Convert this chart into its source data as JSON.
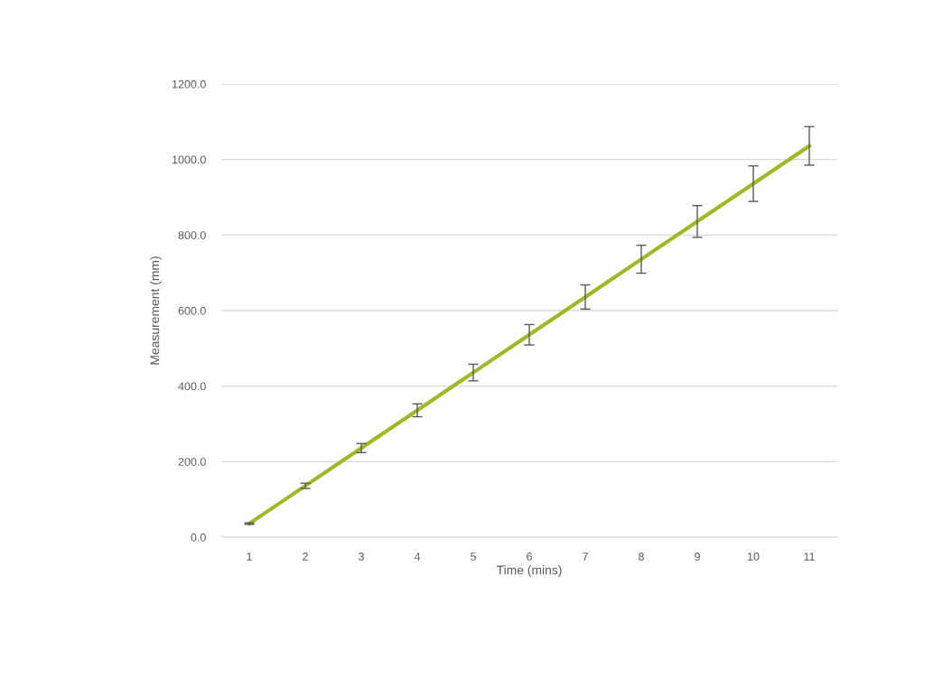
{
  "chart_data": {
    "type": "line",
    "xlabel": "Time (mins)",
    "ylabel": "Measurement (mm)",
    "categories": [
      "1",
      "2",
      "3",
      "4",
      "5",
      "6",
      "7",
      "8",
      "9",
      "10",
      "11"
    ],
    "series": [
      {
        "color": "#9cba25",
        "values": [
          36,
          136,
          236,
          336,
          436,
          536,
          636,
          736,
          836,
          936,
          1036
        ],
        "errors": [
          2,
          7,
          12,
          17,
          22,
          27,
          32,
          37,
          42,
          47,
          51
        ]
      }
    ],
    "ylim": [
      0,
      1200
    ],
    "yticks": [
      {
        "value": 0,
        "label": "0.0"
      },
      {
        "value": 200,
        "label": "200.0"
      },
      {
        "value": 400,
        "label": "400.0"
      },
      {
        "value": 600,
        "label": "600.0"
      },
      {
        "value": 800,
        "label": "800.0"
      },
      {
        "value": 1000,
        "label": "1000.0"
      },
      {
        "value": 1200,
        "label": "1200.0"
      }
    ],
    "grid": "y",
    "marker": "none",
    "line_style": "solid"
  }
}
